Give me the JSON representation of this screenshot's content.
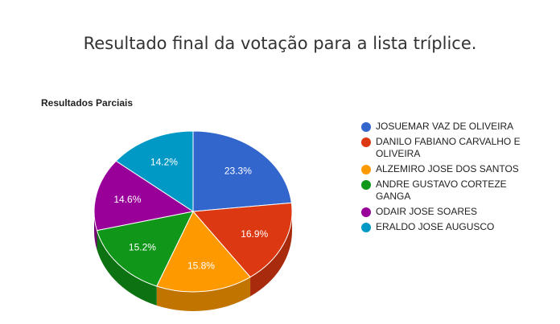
{
  "page": {
    "title": "Resultado final da votação para a lista tríplice."
  },
  "chart_data": {
    "type": "pie",
    "title": "Resultados Parciais",
    "is_3d": true,
    "legend_position": "right",
    "series": [
      {
        "name": "JOSUEMAR VAZ DE OLIVEIRA",
        "value": 23.3,
        "label": "23.3%",
        "color": "#3366cc",
        "side_color": "#26509d"
      },
      {
        "name": "DANILO FABIANO CARVALHO E OLIVEIRA",
        "value": 16.9,
        "label": "16.9%",
        "color": "#dc3912",
        "side_color": "#a92b0e"
      },
      {
        "name": "ALZEMIRO JOSE DOS SANTOS",
        "value": 15.8,
        "label": "15.8%",
        "color": "#ff9900",
        "side_color": "#c27400"
      },
      {
        "name": "ANDRE GUSTAVO CORTEZE GANGA",
        "value": 15.2,
        "label": "15.2%",
        "color": "#109618",
        "side_color": "#0c7212"
      },
      {
        "name": "ODAIR JOSE SOARES",
        "value": 14.6,
        "label": "14.6%",
        "color": "#990099",
        "side_color": "#740074"
      },
      {
        "name": "ERALDO JOSE AUGUSCO",
        "value": 14.2,
        "label": "14.2%",
        "color": "#0099c6",
        "side_color": "#007496"
      }
    ]
  }
}
